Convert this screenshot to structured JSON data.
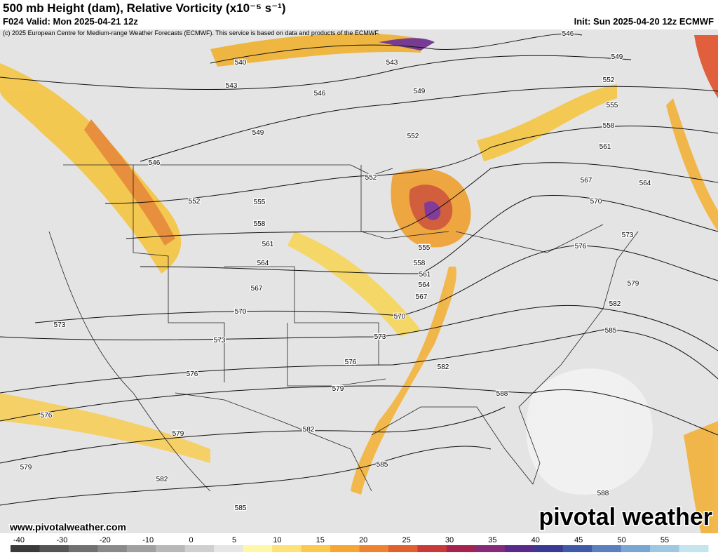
{
  "header": {
    "title": "500 mb Height (dam), Relative Vorticity (x10⁻⁵ s⁻¹)",
    "valid": "F024 Valid: Mon 2025-04-21 12z",
    "init": "Init: Sun 2025-04-20 12z ECMWF",
    "credit": "(c) 2025 European Centre for Medium-range Weather Forecasts (ECMWF). This service is based on data and products of the ECMWF."
  },
  "map": {
    "contour_labels": [
      546,
      549,
      552,
      555,
      558,
      561,
      564,
      567,
      570,
      573,
      576,
      579,
      582,
      585,
      588,
      588,
      540,
      543,
      543,
      546,
      549,
      549,
      546,
      552,
      552,
      552,
      555,
      558,
      561,
      564,
      567,
      570,
      573,
      573,
      573,
      570,
      567,
      564,
      561,
      558,
      555,
      576,
      576,
      579,
      582,
      582,
      585,
      585,
      576,
      579,
      579,
      582
    ],
    "url": "www.pivotalweather.com",
    "watermark": "pivotal weather"
  },
  "colorbar": {
    "labels": [
      "-40",
      "-30",
      "-20",
      "-10",
      "0",
      "5",
      "10",
      "15",
      "20",
      "25",
      "30",
      "35",
      "40",
      "45",
      "50",
      "55"
    ]
  }
}
